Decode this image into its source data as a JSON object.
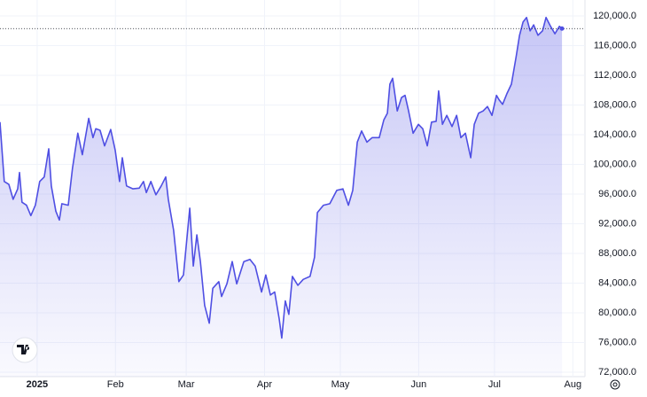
{
  "chart_data": {
    "type": "area",
    "x": [
      -14.7,
      -13,
      -11.2,
      -9.5,
      -7.7,
      -7,
      -6,
      -4.2,
      -2.5,
      -0.7,
      1,
      2.8,
      4.6,
      5.6,
      7.4,
      8.8,
      9.8,
      12.3,
      14,
      16.1,
      17.9,
      20.4,
      22.1,
      23.2,
      24.9,
      26.7,
      29.1,
      30.9,
      32.6,
      33.7,
      35.4,
      37.9,
      40.4,
      42.1,
      43.2,
      45,
      47,
      49.1,
      50.9,
      51.9,
      54,
      56.1,
      57.9,
      60.4,
      61.8,
      63.2,
      64.6,
      66.3,
      68.1,
      69.5,
      71.9,
      73,
      75.1,
      77.2,
      79,
      81.8,
      84.2,
      86.3,
      88.8,
      90.5,
      92.3,
      94,
      95.8,
      96.8,
      98.2,
      99.6,
      101,
      103.2,
      105.3,
      108,
      109.8,
      110.9,
      113.3,
      115.8,
      118.6,
      121,
      123.2,
      124.9,
      126.7,
      128.4,
      130.5,
      132.6,
      135.4,
      137.2,
      138.6,
      139.6,
      140.7,
      142.5,
      144.2,
      145.6,
      147,
      148.8,
      150.9,
      152.6,
      154.4,
      156.1,
      157.9,
      158.9,
      160.4,
      162.1,
      164.2,
      166,
      167.7,
      169.5,
      171.6,
      173,
      174.7,
      176.5,
      178.2,
      180,
      181.8,
      182.8,
      184.2,
      186,
      187.7,
      189.5,
      190.9,
      192.3,
      193.7,
      195.1,
      196.5,
      198.2,
      200,
      201.4,
      203.2,
      204.9,
      206.7,
      207.7
    ],
    "series": [
      {
        "color": "#4f4fe3",
        "values": [
          105700,
          97700,
          97300,
          95300,
          96700,
          98900,
          94900,
          94500,
          93100,
          94500,
          97700,
          98300,
          102100,
          97100,
          93700,
          92500,
          94700,
          94500,
          99500,
          104200,
          101300,
          106200,
          103600,
          104800,
          104600,
          102500,
          104700,
          101900,
          97700,
          100900,
          97100,
          96700,
          96800,
          97700,
          96200,
          97700,
          95900,
          97100,
          98300,
          95300,
          91100,
          84200,
          85100,
          94100,
          86300,
          90500,
          86900,
          81000,
          78600,
          83300,
          84200,
          82200,
          83900,
          86900,
          83900,
          86900,
          87200,
          86300,
          82800,
          85100,
          82400,
          82800,
          79200,
          76600,
          81600,
          79800,
          84900,
          83700,
          84500,
          84900,
          87500,
          93500,
          94500,
          94700,
          96500,
          96700,
          94500,
          96500,
          103000,
          104500,
          103000,
          103600,
          103600,
          106000,
          106900,
          110800,
          111600,
          107200,
          109000,
          109300,
          107200,
          104200,
          105400,
          104800,
          102500,
          105700,
          105800,
          109900,
          105400,
          106600,
          105100,
          106600,
          103600,
          104200,
          100900,
          105400,
          106900,
          107200,
          107800,
          106600,
          109300,
          108700,
          108100,
          109600,
          110800,
          114400,
          117400,
          119200,
          119800,
          118000,
          118800,
          117400,
          118000,
          119800,
          118600,
          117600,
          118600,
          118300
        ]
      }
    ],
    "xlim": [
      -14.7,
      216.8
    ],
    "xticks": [
      {
        "value": 0,
        "label": "2025"
      },
      {
        "value": 31,
        "label": "Feb"
      },
      {
        "value": 59,
        "label": "Mar"
      },
      {
        "value": 90,
        "label": "Apr"
      },
      {
        "value": 120,
        "label": "May"
      },
      {
        "value": 151,
        "label": "Jun"
      },
      {
        "value": 181,
        "label": "Jul"
      },
      {
        "value": 212,
        "label": "Aug"
      }
    ],
    "ylim": [
      71400,
      122150
    ],
    "yticks": [
      {
        "value": 72000,
        "label": "72,000.0"
      },
      {
        "value": 76000,
        "label": "76,000.0"
      },
      {
        "value": 80000,
        "label": "80,000.0"
      },
      {
        "value": 84000,
        "label": "84,000.0"
      },
      {
        "value": 88000,
        "label": "88,000.0"
      },
      {
        "value": 92000,
        "label": "92,000.0"
      },
      {
        "value": 96000,
        "label": "96,000.0"
      },
      {
        "value": 100000,
        "label": "100,000.0"
      },
      {
        "value": 104000,
        "label": "104,000.0"
      },
      {
        "value": 108000,
        "label": "108,000.0"
      },
      {
        "value": 112000,
        "label": "112,000.0"
      },
      {
        "value": 116000,
        "label": "116,000.0"
      },
      {
        "value": 120000,
        "label": "120,000.0"
      }
    ],
    "grid": true
  }
}
